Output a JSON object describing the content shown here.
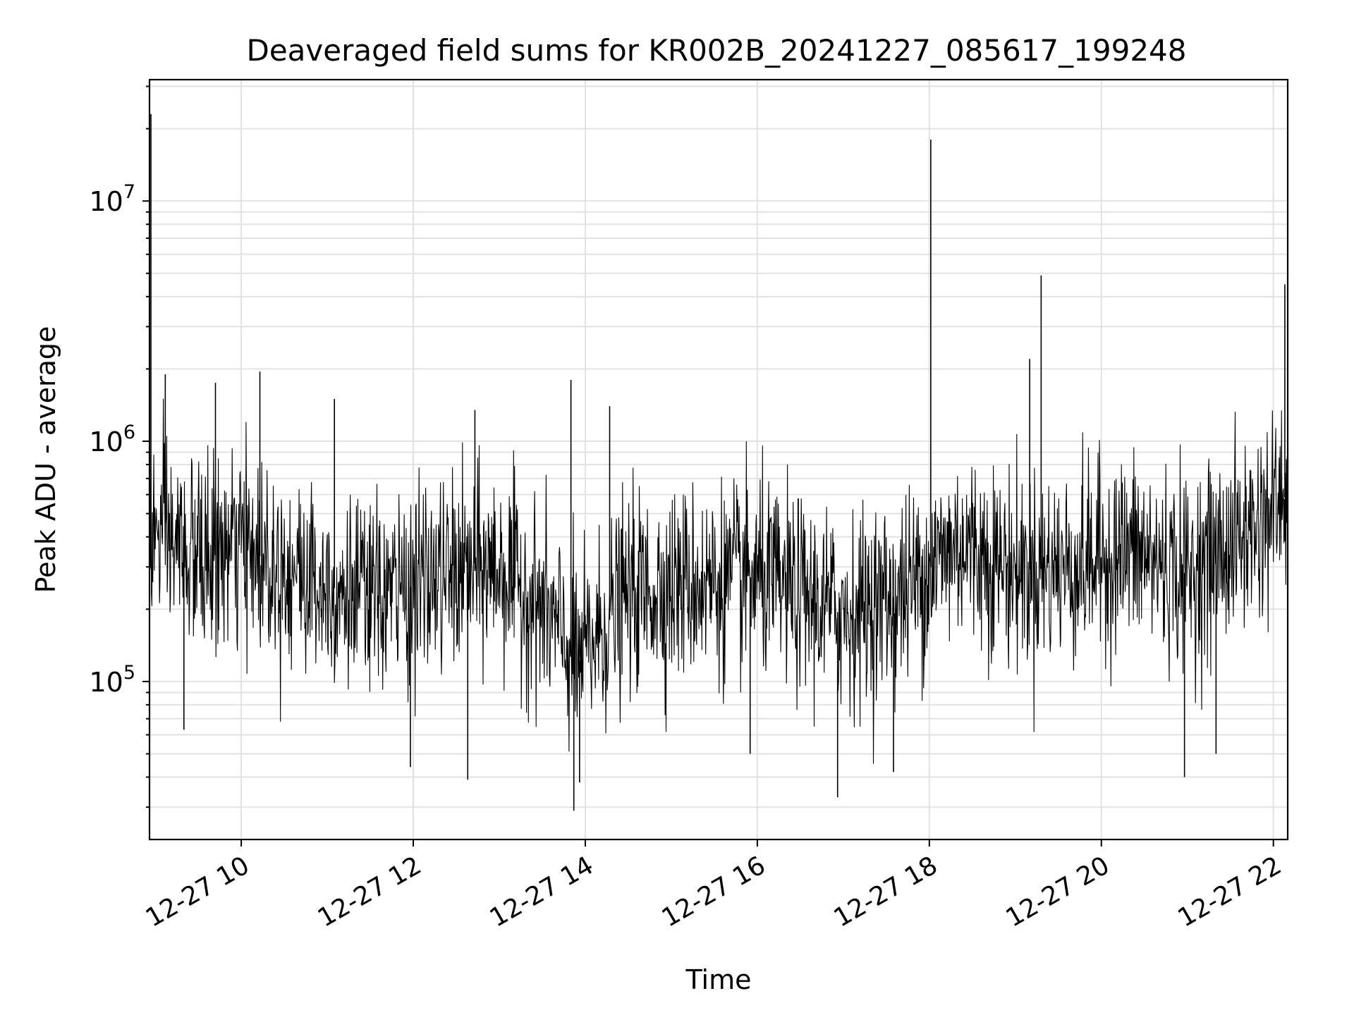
{
  "chart_data": {
    "type": "line",
    "title": "Deaveraged field sums for KR002B_20241227_085617_199248",
    "xlabel": "Time",
    "ylabel": "Peak ADU - average",
    "yscale": "log",
    "xlim": [
      "2024-12-27 08:56",
      "2024-12-27 22:10"
    ],
    "ylim": [
      22000,
      32000000
    ],
    "grid": true,
    "line_color": "#000000",
    "x_ticks": [
      {
        "value": "2024-12-27 10:00",
        "label": "12-27 10"
      },
      {
        "value": "2024-12-27 12:00",
        "label": "12-27 12"
      },
      {
        "value": "2024-12-27 14:00",
        "label": "12-27 14"
      },
      {
        "value": "2024-12-27 16:00",
        "label": "12-27 16"
      },
      {
        "value": "2024-12-27 18:00",
        "label": "12-27 18"
      },
      {
        "value": "2024-12-27 20:00",
        "label": "12-27 20"
      },
      {
        "value": "2024-12-27 22:00",
        "label": "12-27 22"
      }
    ],
    "y_ticks": [
      {
        "value": 100000,
        "base": "10",
        "exp": "5"
      },
      {
        "value": 1000000,
        "base": "10",
        "exp": "6"
      },
      {
        "value": 10000000,
        "base": "10",
        "exp": "7"
      }
    ],
    "series": [
      {
        "x_range": [
          "2024-12-27 08:56",
          "2024-12-27 22:10"
        ],
        "sample_interval_s": 20,
        "baseline": [
          {
            "t": "2024-12-27 08:56",
            "v": 420000
          },
          {
            "t": "2024-12-27 09:30",
            "v": 320000
          },
          {
            "t": "2024-12-27 10:00",
            "v": 360000
          },
          {
            "t": "2024-12-27 10:30",
            "v": 300000
          },
          {
            "t": "2024-12-27 11:00",
            "v": 250000
          },
          {
            "t": "2024-12-27 11:30",
            "v": 220000
          },
          {
            "t": "2024-12-27 12:00",
            "v": 250000
          },
          {
            "t": "2024-12-27 12:30",
            "v": 280000
          },
          {
            "t": "2024-12-27 13:00",
            "v": 300000
          },
          {
            "t": "2024-12-27 13:30",
            "v": 200000
          },
          {
            "t": "2024-12-27 13:55",
            "v": 120000
          },
          {
            "t": "2024-12-27 14:30",
            "v": 230000
          },
          {
            "t": "2024-12-27 15:00",
            "v": 250000
          },
          {
            "t": "2024-12-27 16:00",
            "v": 270000
          },
          {
            "t": "2024-12-27 17:00",
            "v": 190000
          },
          {
            "t": "2024-12-27 17:40",
            "v": 230000
          },
          {
            "t": "2024-12-27 18:20",
            "v": 380000
          },
          {
            "t": "2024-12-27 19:00",
            "v": 290000
          },
          {
            "t": "2024-12-27 19:40",
            "v": 300000
          },
          {
            "t": "2024-12-27 20:20",
            "v": 350000
          },
          {
            "t": "2024-12-27 21:00",
            "v": 280000
          },
          {
            "t": "2024-12-27 21:40",
            "v": 400000
          },
          {
            "t": "2024-12-27 22:10",
            "v": 600000
          }
        ],
        "spikes": [
          {
            "t": "2024-12-27 08:57",
            "v": 23000000
          },
          {
            "t": "2024-12-27 09:07",
            "v": 1900000
          },
          {
            "t": "2024-12-27 09:42",
            "v": 1750000
          },
          {
            "t": "2024-12-27 10:13",
            "v": 1950000
          },
          {
            "t": "2024-12-27 11:05",
            "v": 1500000
          },
          {
            "t": "2024-12-27 12:43",
            "v": 1350000
          },
          {
            "t": "2024-12-27 13:50",
            "v": 1800000
          },
          {
            "t": "2024-12-27 14:17",
            "v": 1400000
          },
          {
            "t": "2024-12-27 18:01",
            "v": 18000000
          },
          {
            "t": "2024-12-27 19:10",
            "v": 2200000
          },
          {
            "t": "2024-12-27 19:18",
            "v": 4900000
          },
          {
            "t": "2024-12-27 22:08",
            "v": 4500000
          }
        ],
        "dips": [
          {
            "t": "2024-12-27 13:52",
            "v": 29000
          },
          {
            "t": "2024-12-27 13:56",
            "v": 38000
          },
          {
            "t": "2024-12-27 12:38",
            "v": 39000
          },
          {
            "t": "2024-12-27 16:56",
            "v": 33000
          },
          {
            "t": "2024-12-27 20:58",
            "v": 40000
          },
          {
            "t": "2024-12-27 11:58",
            "v": 44000
          },
          {
            "t": "2024-12-27 17:35",
            "v": 42000
          },
          {
            "t": "2024-12-27 09:20",
            "v": 63000
          },
          {
            "t": "2024-12-27 15:55",
            "v": 50000
          },
          {
            "t": "2024-12-27 21:20",
            "v": 50000
          }
        ]
      }
    ]
  }
}
